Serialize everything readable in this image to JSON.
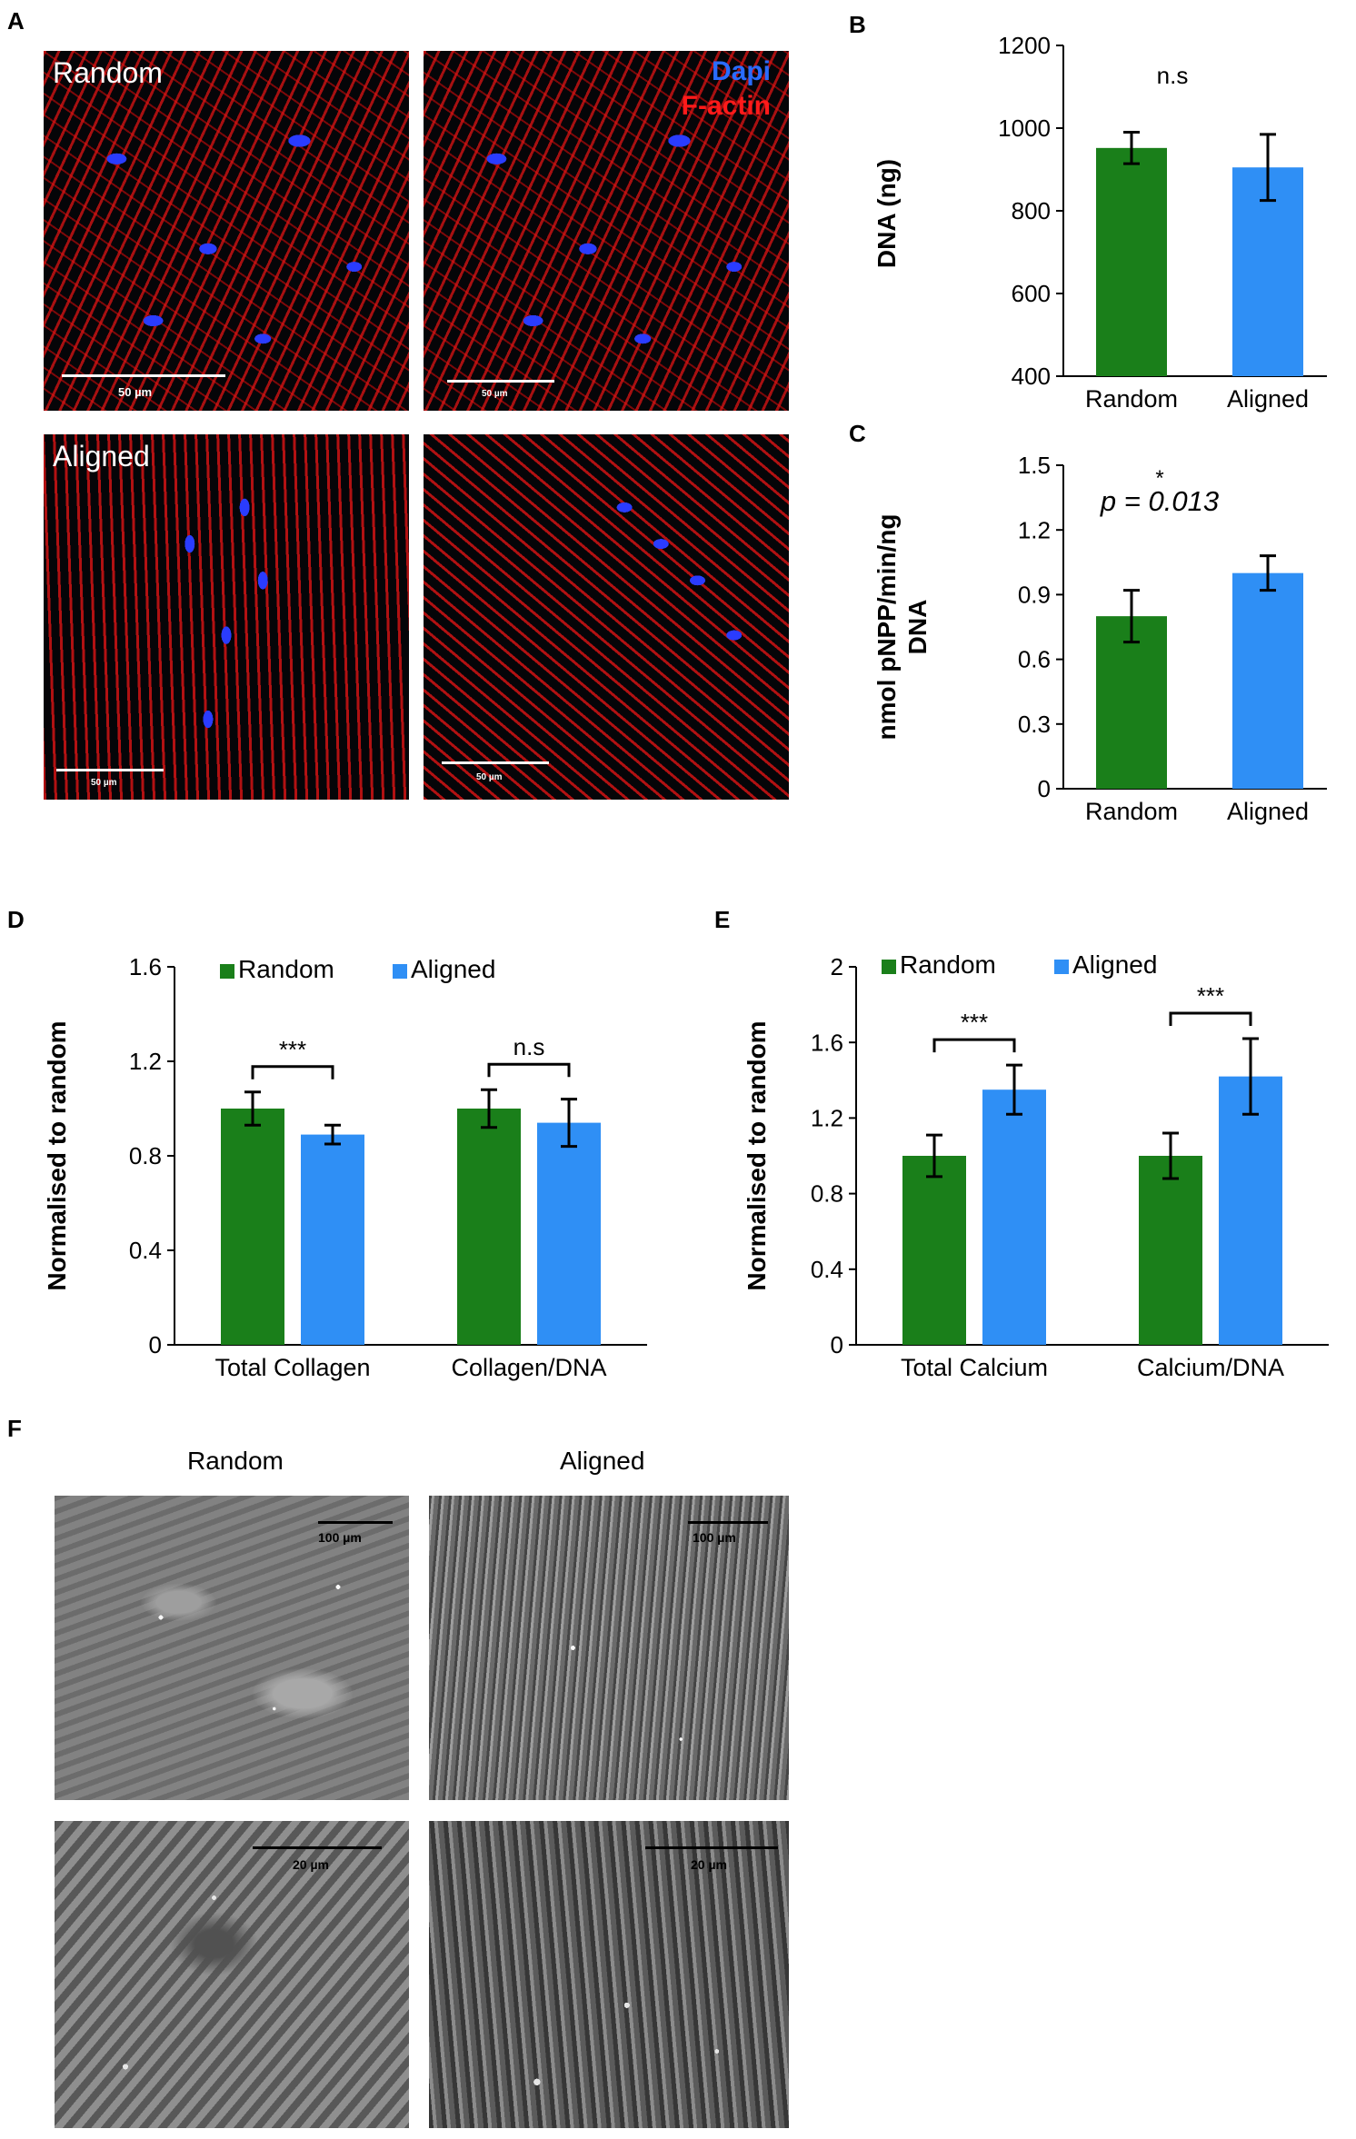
{
  "panels": {
    "A": "A",
    "B": "B",
    "C": "C",
    "D": "D",
    "E": "E",
    "F": "F"
  },
  "panel_a": {
    "label_random": "Random",
    "label_aligned": "Aligned",
    "legend_dapi": "Dapi",
    "legend_factin": "F-actin",
    "dapi_color": "#2a6cff",
    "factin_color": "#ff1a1a",
    "scalebars": [
      "50 µm",
      "50 µm",
      "50 µm",
      "50 µm"
    ]
  },
  "panel_f": {
    "col_random": "Random",
    "col_aligned": "Aligned",
    "scalebars": [
      "100 µm",
      "100 µm",
      "20 µm",
      "20 µm"
    ]
  },
  "colors": {
    "random": "#1a7f1a",
    "aligned": "#2f8ff5"
  },
  "chart_data": [
    {
      "id": "B",
      "type": "bar",
      "categories": [
        "Random",
        "Aligned"
      ],
      "values": [
        952,
        905
      ],
      "errors": [
        38,
        80
      ],
      "ylabel": "DNA (ng)",
      "ylim": [
        400,
        1200
      ],
      "yticks": [
        "400",
        "600",
        "800",
        "1000",
        "1200"
      ],
      "annotation": "n.s"
    },
    {
      "id": "C",
      "type": "bar",
      "categories": [
        "Random",
        "Aligned"
      ],
      "values": [
        0.8,
        1.0
      ],
      "errors": [
        0.12,
        0.08
      ],
      "ylabel_line1": "nmol pNPP/min/ng",
      "ylabel_line2": "DNA",
      "ylim": [
        0,
        1.5
      ],
      "yticks": [
        "0",
        "0.3",
        "0.6",
        "0.9",
        "1.2",
        "1.5"
      ],
      "annotation_star": "*",
      "annotation": "p = 0.013"
    },
    {
      "id": "D",
      "type": "bar",
      "categories": [
        "Total Collagen",
        "Collagen/DNA"
      ],
      "series": [
        {
          "name": "Random",
          "values": [
            1.0,
            1.0
          ],
          "errors": [
            0.07,
            0.08
          ]
        },
        {
          "name": "Aligned",
          "values": [
            0.89,
            0.94
          ],
          "errors": [
            0.04,
            0.1
          ]
        }
      ],
      "ylabel": "Normalised to random",
      "ylim": [
        0,
        1.6
      ],
      "yticks": [
        "0",
        "0.4",
        "0.8",
        "1.2",
        "1.6"
      ],
      "significance": [
        "***",
        "n.s"
      ],
      "legend": "top"
    },
    {
      "id": "E",
      "type": "bar",
      "categories": [
        "Total Calcium",
        "Calcium/DNA"
      ],
      "series": [
        {
          "name": "Random",
          "values": [
            1.0,
            1.0
          ],
          "errors": [
            0.11,
            0.12
          ]
        },
        {
          "name": "Aligned",
          "values": [
            1.35,
            1.42
          ],
          "errors": [
            0.13,
            0.2
          ]
        }
      ],
      "ylabel": "Normalised to random",
      "ylim": [
        0,
        2
      ],
      "yticks": [
        "0",
        "0.4",
        "0.8",
        "1.2",
        "1.6",
        "2"
      ],
      "significance": [
        "***",
        "***"
      ],
      "legend": "top"
    }
  ]
}
